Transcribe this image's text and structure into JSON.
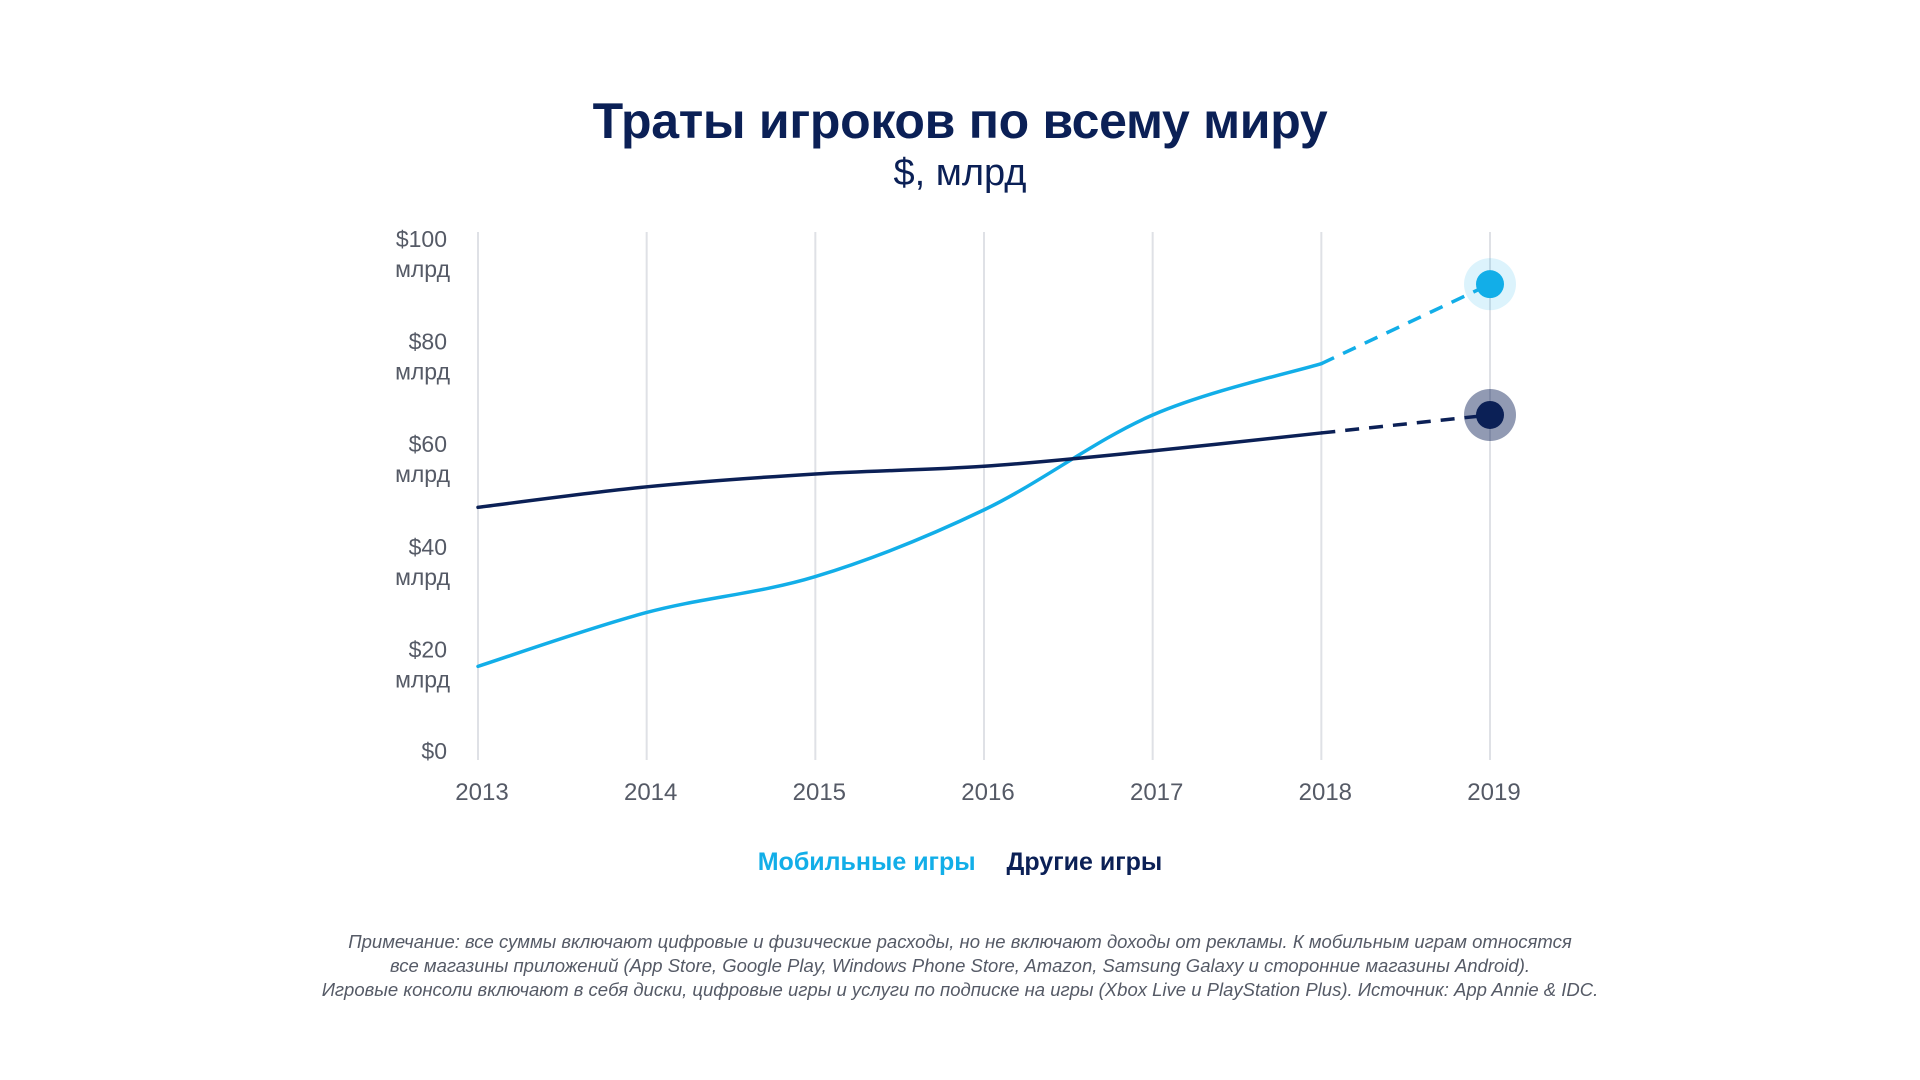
{
  "chart_data": {
    "type": "line",
    "title": "Траты игроков по всему миру",
    "subtitle": "$, млрд",
    "categories": [
      "2013",
      "2014",
      "2015",
      "2016",
      "2017",
      "2018",
      "2019"
    ],
    "ylim": [
      0,
      100
    ],
    "y_ticks": [
      {
        "value": 0,
        "line1": "$0",
        "line2": ""
      },
      {
        "value": 20,
        "line1": "$20",
        "line2": "млрд"
      },
      {
        "value": 40,
        "line1": "$40",
        "line2": "млрд"
      },
      {
        "value": 60,
        "line1": "$60",
        "line2": "млрд"
      },
      {
        "value": 80,
        "line1": "$80",
        "line2": "млрд"
      },
      {
        "value": 100,
        "line1": "$100",
        "line2": "млрд"
      }
    ],
    "grid": true,
    "series": [
      {
        "name": "Мобильные игры",
        "color": "#12aee8",
        "values": [
          16.5,
          27,
          34,
          47,
          65.5,
          75.5,
          91
        ],
        "forecast_from_index": 5
      },
      {
        "name": "Другие игры",
        "color": "#0b2056",
        "values": [
          47.5,
          51.5,
          54,
          55.5,
          58.5,
          62,
          65.5
        ],
        "forecast_from_index": 5
      }
    ],
    "legend_position": "bottom"
  },
  "note": {
    "lines": [
      "Примечание: все суммы включают цифровые и физические расходы, но не включают доходы от рекламы. К мобильным играм относятся",
      "все магазины приложений (App Store, Google Play, Windows Phone Store, Amazon, Samsung Galaxy и сторонние магазины Android).",
      "Игровые консоли включают в себя диски, цифровые игры и услуги по подписке на игры (Xbox Live и PlayStation Plus). Источник: App Annie & IDC."
    ]
  }
}
